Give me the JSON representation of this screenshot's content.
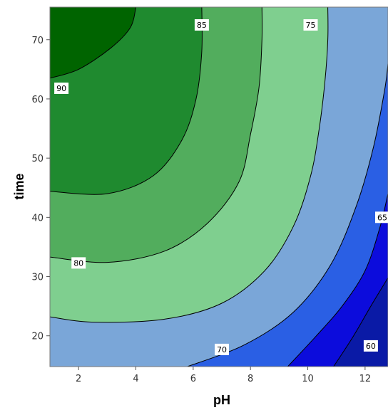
{
  "chart_data": {
    "type": "contour",
    "title": "",
    "xlabel": "pH",
    "ylabel": "time",
    "xlim": [
      1,
      12.8
    ],
    "ylim": [
      14.8,
      75.5
    ],
    "x_ticks": [
      2,
      4,
      6,
      8,
      10,
      12
    ],
    "y_ticks": [
      20,
      30,
      40,
      50,
      60,
      70
    ],
    "grid": false,
    "legend": "none",
    "levels": [
      {
        "value": 60,
        "color": "#0a1aa6",
        "label": "60",
        "label_at": [
          12.2,
          18.3
        ],
        "path": [
          [
            10.9,
            14.8
          ],
          [
            11.6,
            20.0
          ],
          [
            12.2,
            25.0
          ],
          [
            12.8,
            29.8
          ]
        ]
      },
      {
        "value": 65,
        "color": "#0c0cdc",
        "label": "65",
        "label_at": [
          12.6,
          40.0
        ],
        "path": [
          [
            9.3,
            14.8
          ],
          [
            10.3,
            20.0
          ],
          [
            11.2,
            25.0
          ],
          [
            12.0,
            31.0
          ],
          [
            12.5,
            38.0
          ],
          [
            12.8,
            44.0
          ]
        ]
      },
      {
        "value": 70,
        "color": "#2a5fe4",
        "label": "70",
        "label_at": [
          7.0,
          17.7
        ],
        "path": [
          [
            5.8,
            14.8
          ],
          [
            7.8,
            18.5
          ],
          [
            9.5,
            24.0
          ],
          [
            10.8,
            32.0
          ],
          [
            11.7,
            42.0
          ],
          [
            12.3,
            52.0
          ],
          [
            12.7,
            62.0
          ],
          [
            12.8,
            66.0
          ]
        ]
      },
      {
        "value": 75,
        "color": "#7aa6d8",
        "label": "75",
        "label_at": [
          10.1,
          72.5
        ],
        "path": [
          [
            1.0,
            23.2
          ],
          [
            2.5,
            22.3
          ],
          [
            5.0,
            22.8
          ],
          [
            7.0,
            25.5
          ],
          [
            8.5,
            31.0
          ],
          [
            9.5,
            38.5
          ],
          [
            10.1,
            47.0
          ],
          [
            10.4,
            55.0
          ],
          [
            10.6,
            63.0
          ],
          [
            10.7,
            70.0
          ],
          [
            10.7,
            75.5
          ]
        ]
      },
      {
        "value": 80,
        "color": "#7fcf8f",
        "label": "80",
        "label_at": [
          2.0,
          32.3
        ],
        "path": [
          [
            1.0,
            33.3
          ],
          [
            3.0,
            32.4
          ],
          [
            5.0,
            34.3
          ],
          [
            6.5,
            39.0
          ],
          [
            7.6,
            46.0
          ],
          [
            8.0,
            54.0
          ],
          [
            8.3,
            62.0
          ],
          [
            8.4,
            70.0
          ],
          [
            8.4,
            75.5
          ]
        ]
      },
      {
        "value": 85,
        "color": "#52ad5d",
        "label": "85",
        "label_at": [
          6.3,
          72.5
        ],
        "path": [
          [
            1.0,
            44.4
          ],
          [
            3.0,
            44.0
          ],
          [
            4.6,
            47.0
          ],
          [
            5.6,
            53.0
          ],
          [
            6.1,
            60.0
          ],
          [
            6.3,
            68.0
          ],
          [
            6.3,
            75.5
          ]
        ]
      },
      {
        "value": 90,
        "color": "#1f8a2f",
        "label": "90",
        "label_at": [
          1.4,
          61.8
        ],
        "path": [
          [
            1.0,
            63.5
          ],
          [
            2.0,
            65.0
          ],
          [
            3.1,
            68.5
          ],
          [
            3.8,
            72.0
          ],
          [
            4.0,
            75.5
          ]
        ]
      }
    ],
    "top_region_color": "#006400"
  }
}
